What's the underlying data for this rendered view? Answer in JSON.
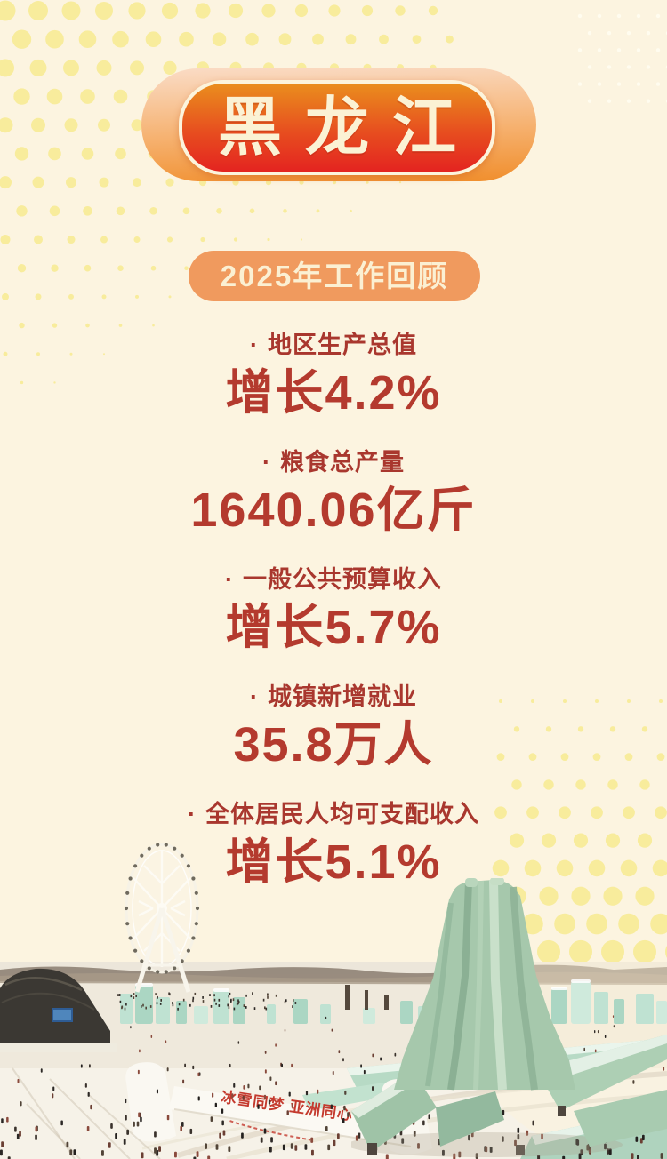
{
  "poster": {
    "title": "黑龙江",
    "subtitle": "2025年工作回顾",
    "stats": [
      {
        "bullet": "·",
        "label": "地区生产总值",
        "value": "增长4.2%"
      },
      {
        "bullet": "·",
        "label": "粮食总产量",
        "value": "1640.06亿斤"
      },
      {
        "bullet": "·",
        "label": "一般公共预算收入",
        "value": "增长5.7%"
      },
      {
        "bullet": "·",
        "label": "城镇新增就业",
        "value": "35.8万人"
      },
      {
        "bullet": "·",
        "label": "全体居民人均可支配收入",
        "value": "增长5.1%"
      }
    ],
    "photo": {
      "slogan": "冰雪同梦 亚洲同心"
    },
    "colors": {
      "background": "#FCF4E0",
      "halftone_yellow": "#F8EC9C",
      "badge_orange": "#EA8E1E",
      "badge_red": "#E42420",
      "pill_orange": "#F09A5E",
      "label_red": "#A9372E",
      "value_red": "#B43A2E",
      "ice_mint": "#A6C8AC"
    }
  }
}
